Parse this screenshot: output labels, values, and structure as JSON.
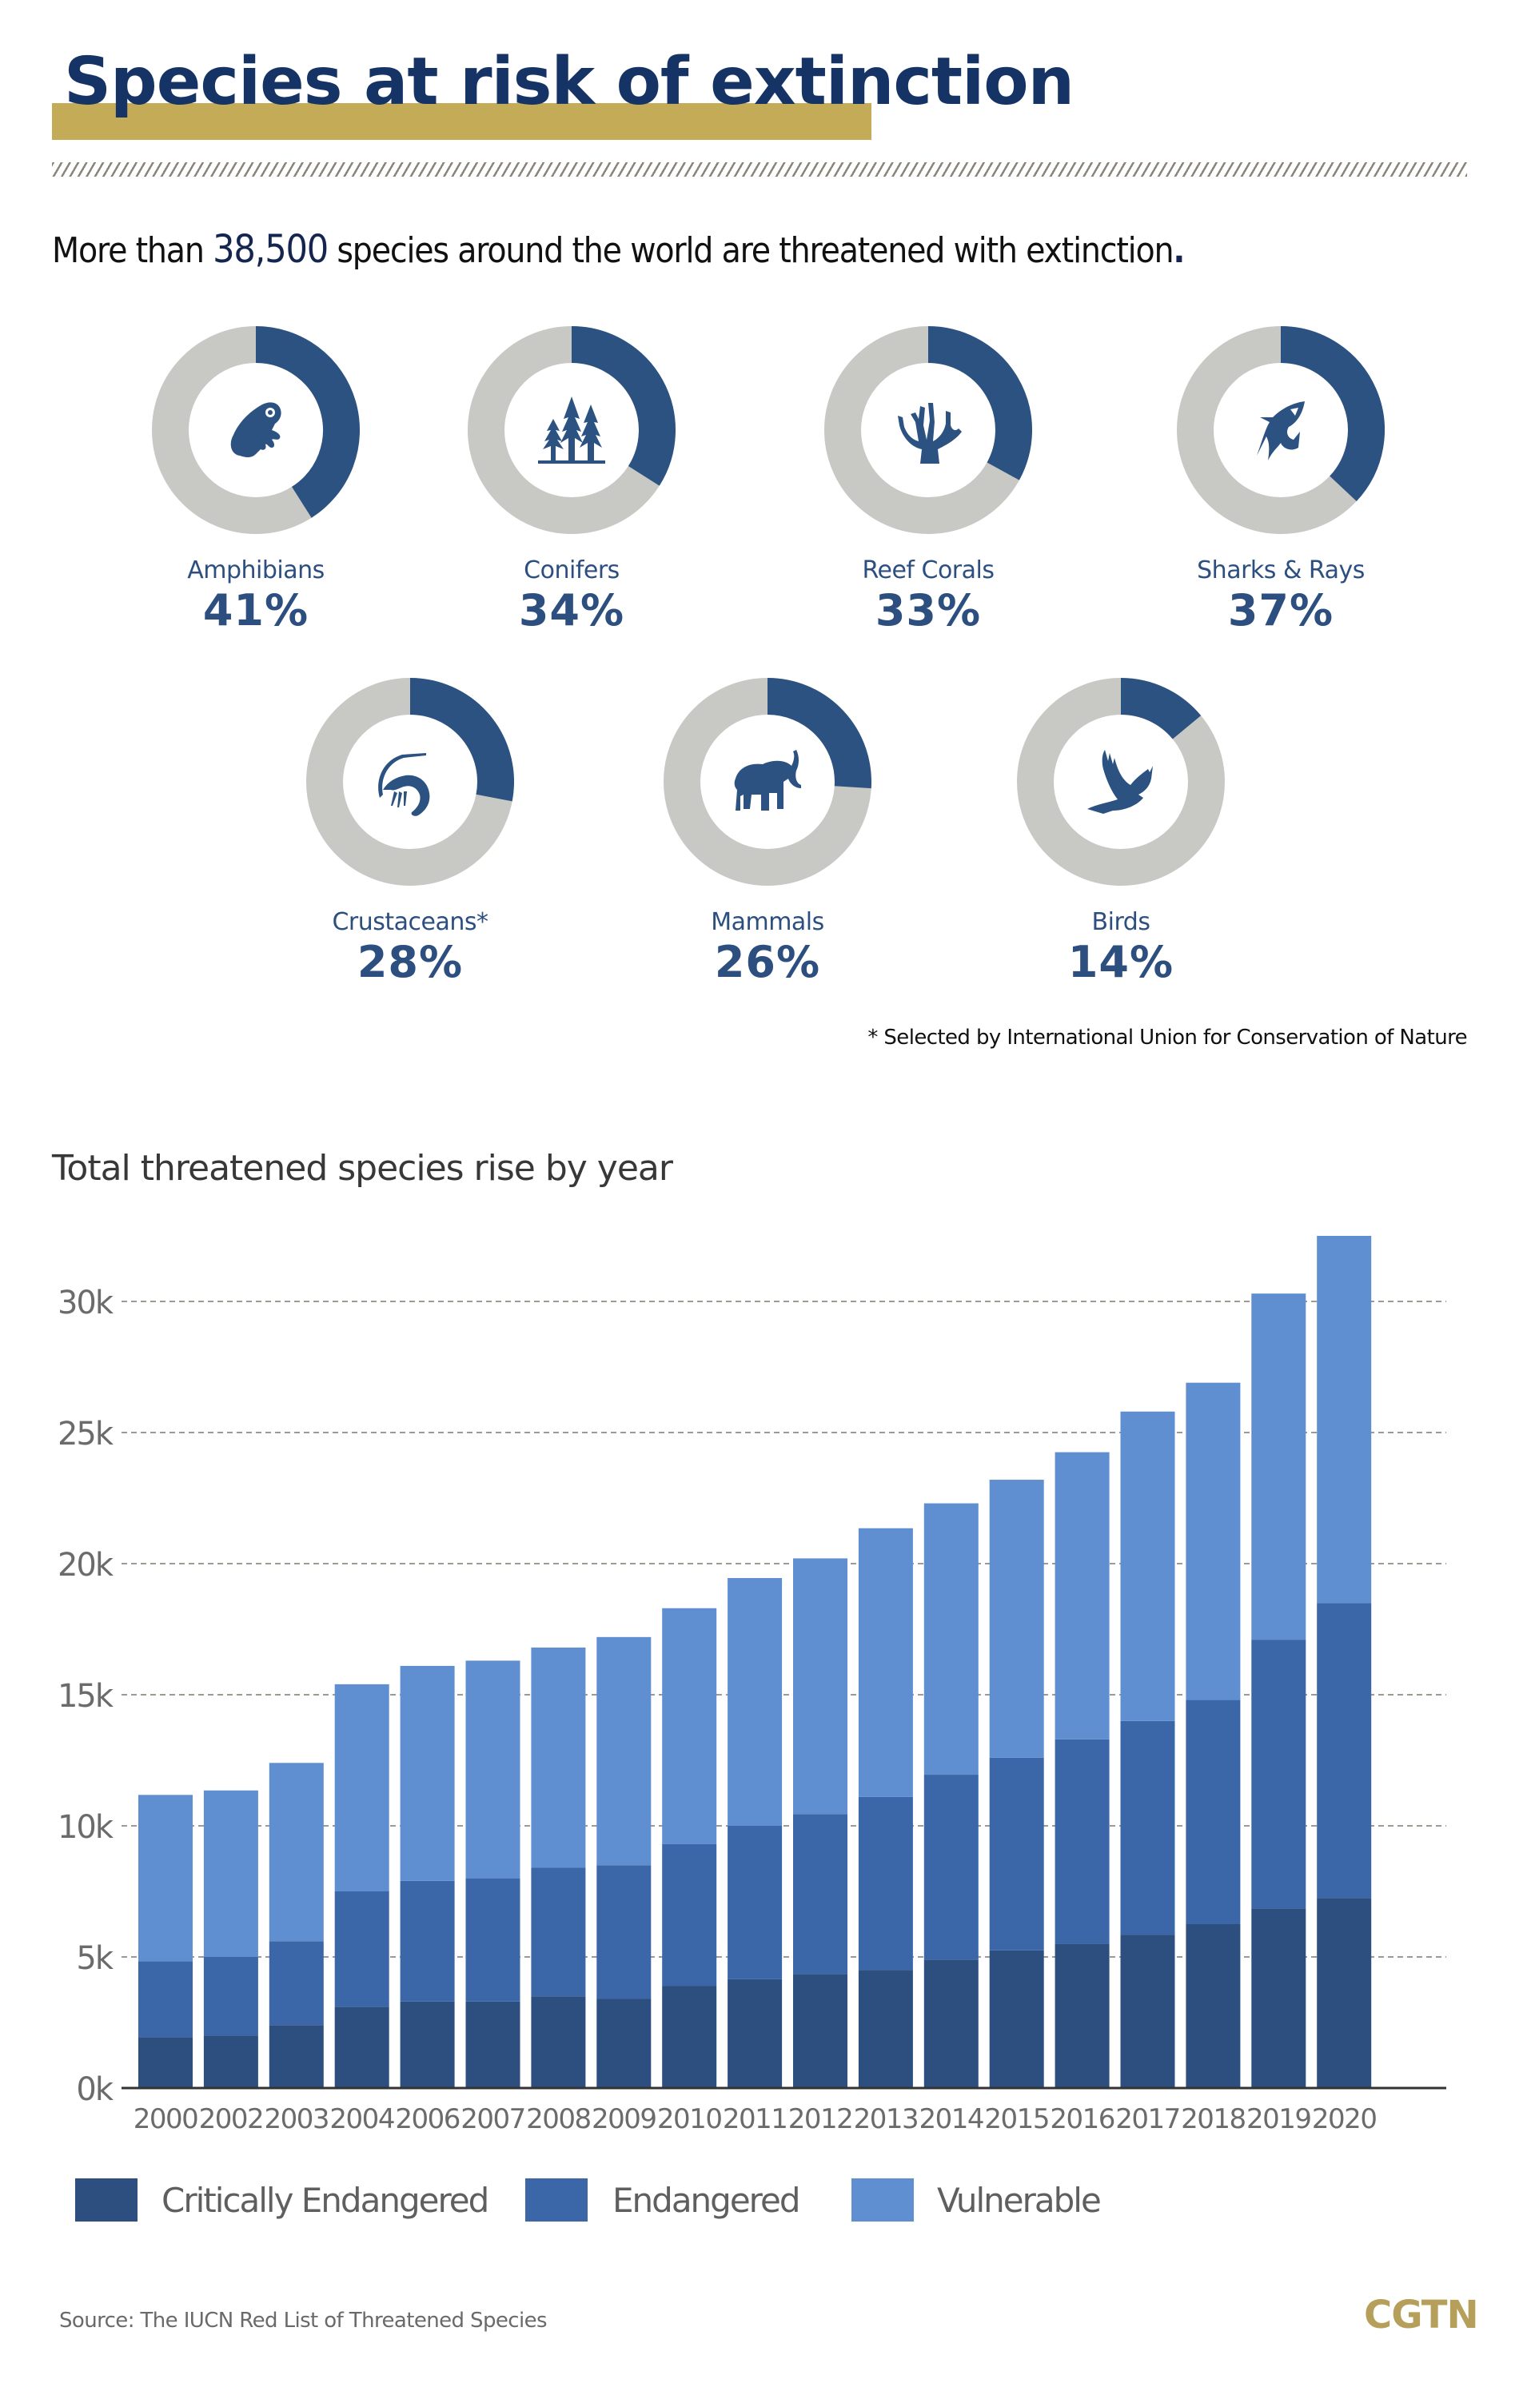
{
  "header": {
    "title": "Species at risk of extinction",
    "headline_prefix": "More than",
    "headline_number": "38,500",
    "headline_suffix": "species around the world are threatened with extinction",
    "headline_end": "."
  },
  "colors": {
    "accent_gold": "#c4ab57",
    "title_navy": "#153465",
    "donut_blue": "#2c5282",
    "donut_gray": "#c8c8c4",
    "critically_endangered": "#2c4f7f",
    "endangered": "#3b67a8",
    "vulnerable": "#5f8fd1"
  },
  "groups": [
    {
      "label": "Amphibians",
      "percent_text": "41%",
      "value": 41,
      "icon": "frog-icon"
    },
    {
      "label": "Conifers",
      "percent_text": "34%",
      "value": 34,
      "icon": "conifer-trees-icon"
    },
    {
      "label": "Reef Corals",
      "percent_text": "33%",
      "value": 33,
      "icon": "coral-icon"
    },
    {
      "label": "Sharks & Rays",
      "percent_text": "37%",
      "value": 37,
      "icon": "shark-icon"
    },
    {
      "label": "Crustaceans*",
      "percent_text": "28%",
      "value": 28,
      "icon": "shrimp-icon"
    },
    {
      "label": "Mammals",
      "percent_text": "26%",
      "value": 26,
      "icon": "elephant-icon"
    },
    {
      "label": "Birds",
      "percent_text": "14%",
      "value": 14,
      "icon": "bird-icon"
    }
  ],
  "footnote": "* Selected by International Union for Conservation of Nature",
  "chart_data": {
    "type": "bar",
    "stacked": true,
    "title": "Total threatened species rise by year",
    "xlabel": "",
    "ylabel": "",
    "ylim": [
      0,
      32500
    ],
    "yticks": [
      0,
      5000,
      10000,
      15000,
      20000,
      25000,
      30000
    ],
    "ytick_labels": [
      "0k",
      "5k",
      "10k",
      "15k",
      "20k",
      "25k",
      "30k"
    ],
    "grid": true,
    "legend_position": "bottom-left",
    "categories": [
      "2000",
      "2002",
      "2003",
      "2004",
      "2006",
      "2007",
      "2008",
      "2009",
      "2010",
      "2011",
      "2012",
      "2013",
      "2014",
      "2015",
      "2016",
      "2017",
      "2018",
      "2019",
      "2020"
    ],
    "series": [
      {
        "name": "Critically Endangered",
        "values": [
          1940,
          2000,
          2400,
          3100,
          3300,
          3300,
          3500,
          3400,
          3900,
          4150,
          4350,
          4500,
          4900,
          5250,
          5500,
          5850,
          6250,
          6850,
          7250
        ]
      },
      {
        "name": "Endangered",
        "values": [
          2900,
          3000,
          3200,
          4400,
          4600,
          4700,
          4900,
          5100,
          5400,
          5850,
          6100,
          6600,
          7050,
          7350,
          7800,
          8150,
          8550,
          10250,
          11250
        ]
      },
      {
        "name": "Vulnerable",
        "values": [
          6340,
          6350,
          6800,
          7900,
          8200,
          8300,
          8400,
          8700,
          9000,
          9450,
          9750,
          10250,
          10350,
          10600,
          10950,
          11800,
          12100,
          13200,
          14000
        ]
      }
    ],
    "totals": [
      11180,
      11350,
      12400,
      15400,
      16100,
      16300,
      16800,
      17200,
      18300,
      19450,
      20200,
      21350,
      22300,
      23200,
      24250,
      25800,
      26900,
      30300,
      32500
    ]
  },
  "legend": [
    {
      "label": "Critically Endangered"
    },
    {
      "label": "Endangered"
    },
    {
      "label": "Vulnerable"
    }
  ],
  "footer": {
    "source": "Source: The IUCN Red List of Threatened Species",
    "brand": "CGTN"
  }
}
